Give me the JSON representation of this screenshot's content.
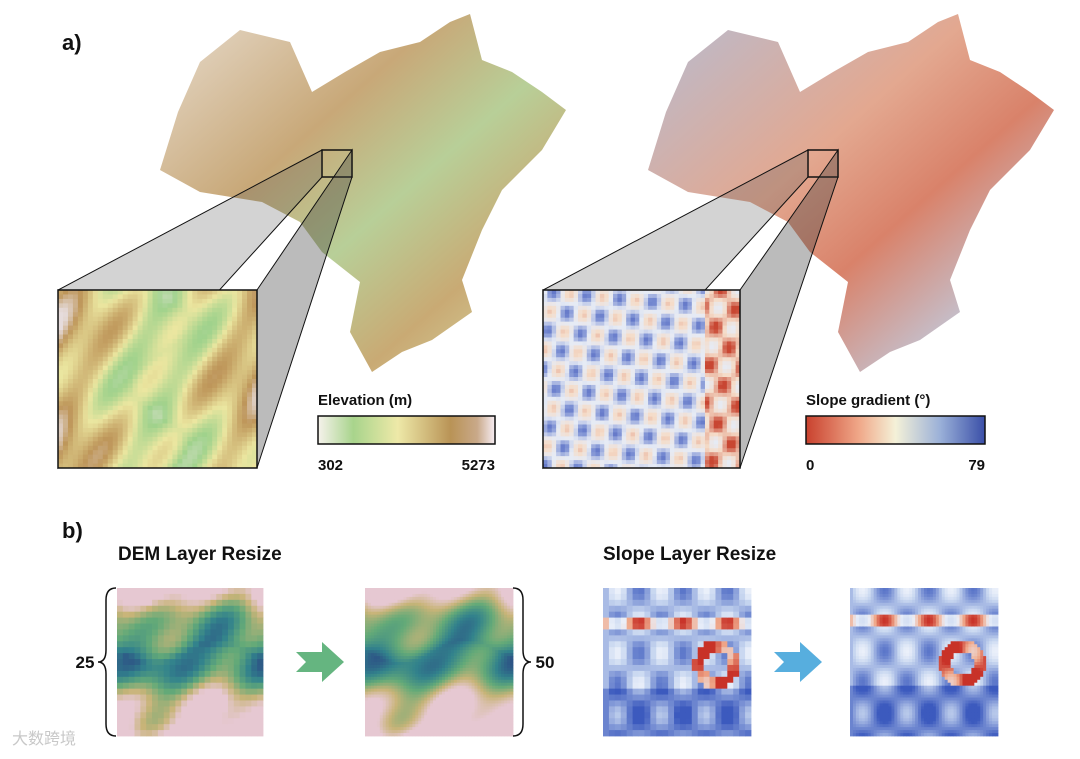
{
  "panel_a": {
    "label": "a)",
    "maps": [
      {
        "legend": {
          "title": "Elevation (m)",
          "min": "302",
          "max": "5273"
        }
      },
      {
        "legend": {
          "title": "Slope gradient (°)",
          "min": "0",
          "max": "79"
        }
      }
    ]
  },
  "panel_b": {
    "label": "b)",
    "groups": [
      {
        "title": "DEM Layer Resize"
      },
      {
        "title": "Slope Layer Resize"
      }
    ],
    "input_size": "25",
    "output_size": "50"
  },
  "watermark": "大数跨境"
}
